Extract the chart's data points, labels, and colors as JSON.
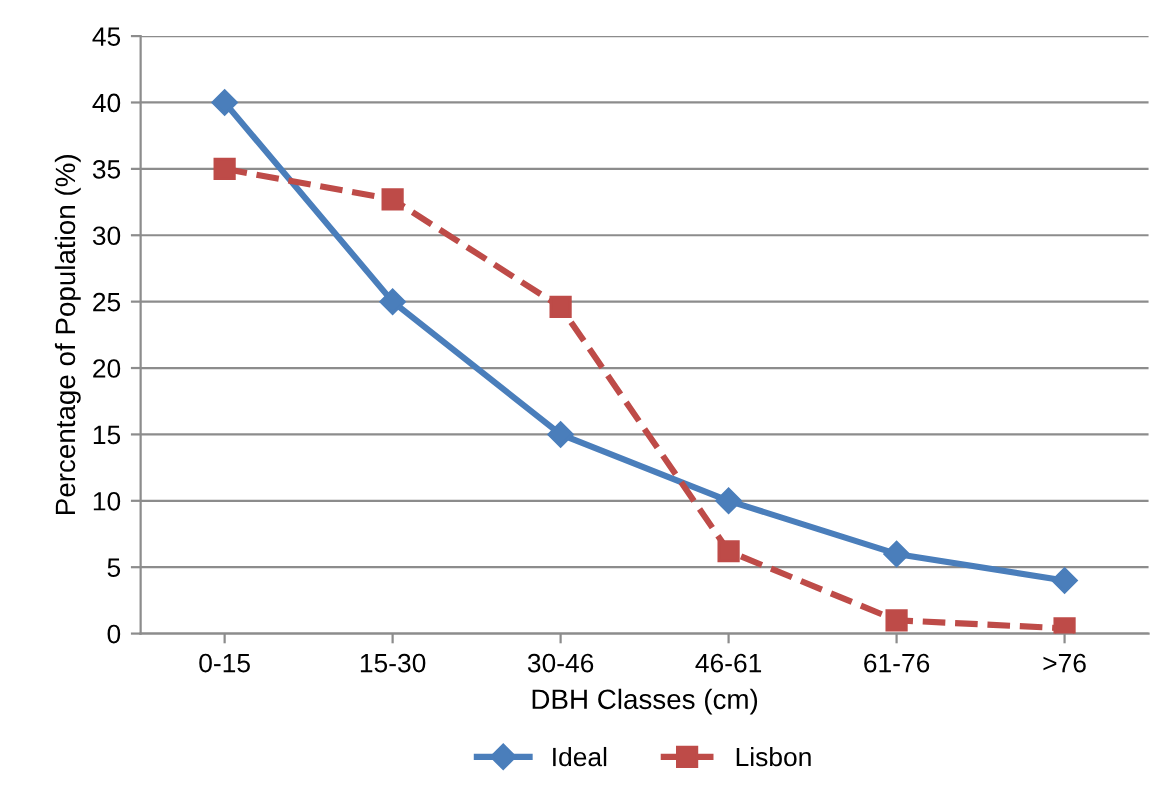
{
  "chart_data": {
    "type": "line",
    "xlabel": "DBH Classes (cm)",
    "ylabel": "Percentage of Population (%)",
    "categories": [
      "0-15",
      "15-30",
      "30-46",
      "46-61",
      "61-76",
      ">76"
    ],
    "series": [
      {
        "name": "Ideal",
        "color": "#4a7ebb",
        "marker": "diamond",
        "line_style": "solid",
        "values": [
          40,
          25,
          15,
          10,
          6,
          4
        ]
      },
      {
        "name": "Lisbon",
        "color": "#be4b48",
        "marker": "square",
        "line_style": "dashed",
        "values": [
          35,
          32.7,
          24.6,
          6.2,
          1,
          0.4
        ]
      }
    ],
    "ylim": [
      0,
      45
    ],
    "yticks": [
      0,
      5,
      10,
      15,
      20,
      25,
      30,
      35,
      40,
      45
    ],
    "grid": "y",
    "legend": "bottom"
  }
}
